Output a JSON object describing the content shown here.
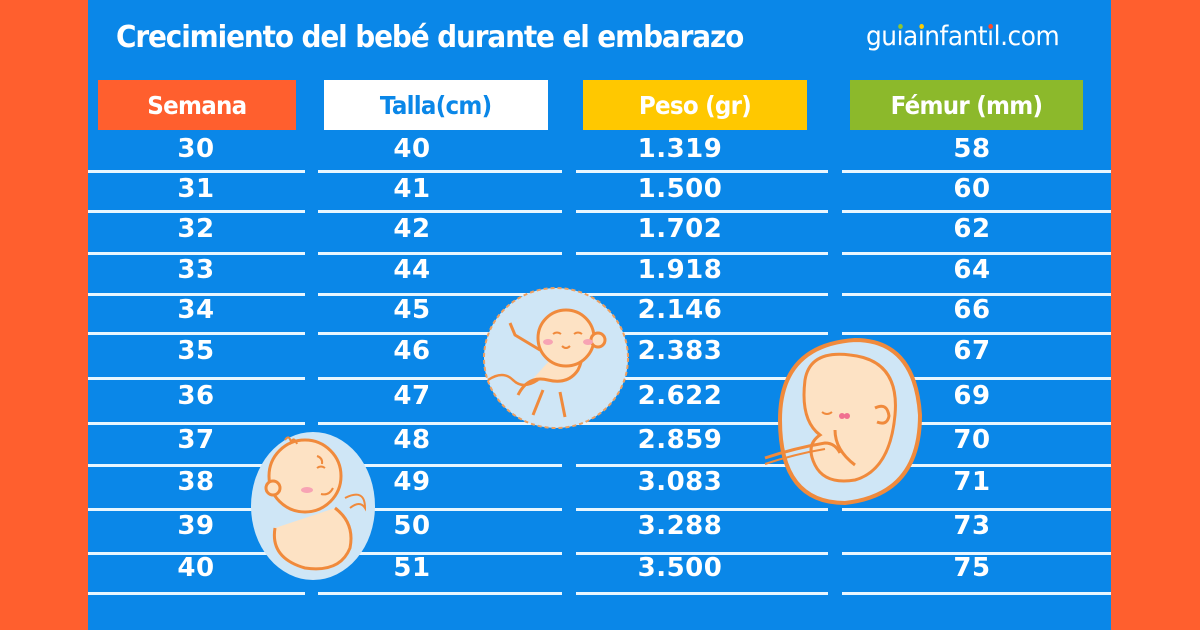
{
  "header": {
    "title": "Crecimiento del bebé durante el embarazo",
    "brand": {
      "text_parts": [
        "gu",
        "i",
        "a",
        "i",
        "nfant",
        "i",
        "l.com"
      ],
      "dot_colors": [
        "#8fc631",
        "#ffcc00",
        "#ff4b2b"
      ]
    }
  },
  "colors": {
    "side_background": "#ff5f2e",
    "panel_background": "#0a87e8",
    "semana_header": "#ff5f2e",
    "talla_header": "#ffffff",
    "talla_header_text": "#0a87e8",
    "peso_header": "#ffc800",
    "femur_header": "#8cb92b"
  },
  "table": {
    "columns": [
      {
        "key": "semana",
        "label": "Semana"
      },
      {
        "key": "talla",
        "label": "Talla(cm)"
      },
      {
        "key": "peso",
        "label": "Peso (gr)"
      },
      {
        "key": "femur",
        "label": "Fémur (mm)"
      }
    ],
    "rows": [
      {
        "semana": "30",
        "talla": "40",
        "peso": "1.319",
        "femur": "58"
      },
      {
        "semana": "31",
        "talla": "41",
        "peso": "1.500",
        "femur": "60"
      },
      {
        "semana": "32",
        "talla": "42",
        "peso": "1.702",
        "femur": "62"
      },
      {
        "semana": "33",
        "talla": "44",
        "peso": "1.918",
        "femur": "64"
      },
      {
        "semana": "34",
        "talla": "45",
        "peso": "2.146",
        "femur": "66"
      },
      {
        "semana": "35",
        "talla": "46",
        "peso": "2.383",
        "femur": "67"
      },
      {
        "semana": "36",
        "talla": "47",
        "peso": "2.622",
        "femur": "69"
      },
      {
        "semana": "37",
        "talla": "48",
        "peso": "2.859",
        "femur": "70"
      },
      {
        "semana": "38",
        "talla": "49",
        "peso": "3.083",
        "femur": "71"
      },
      {
        "semana": "39",
        "talla": "50",
        "peso": "3.288",
        "femur": "73"
      },
      {
        "semana": "40",
        "talla": "51",
        "peso": "3.500",
        "femur": "75"
      }
    ]
  },
  "illustrations": [
    {
      "name": "embryo-waving-icon"
    },
    {
      "name": "embryo-curled-icon"
    },
    {
      "name": "embryo-sleeping-icon"
    }
  ]
}
